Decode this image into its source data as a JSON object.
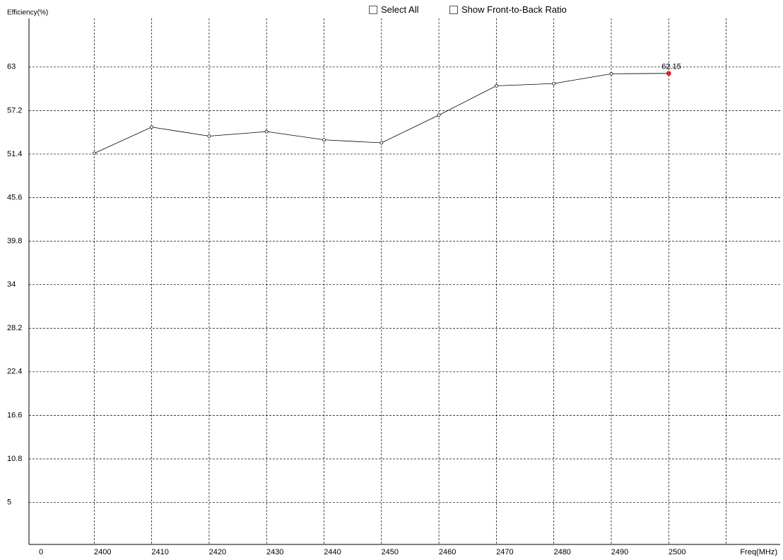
{
  "controls": [
    "Select All",
    "Show Front-to-Back Ratio"
  ],
  "chart_data": {
    "type": "line",
    "y_label": "Efficiency(%)",
    "x_label": "Freq(MHz)",
    "categories": [
      "0",
      "2400",
      "2410",
      "2420",
      "2430",
      "2440",
      "2450",
      "2460",
      "2470",
      "2480",
      "2490",
      "2500",
      null
    ],
    "series": [
      {
        "name": "Efficiency",
        "color": "#000000",
        "values": [
          null,
          51.5,
          55.0,
          53.8,
          54.4,
          53.3,
          52.9,
          56.6,
          60.5,
          60.8,
          62.1,
          62.15,
          null
        ]
      }
    ],
    "highlight": {
      "index": 11,
      "color": "#e02020"
    },
    "ylim": [
      -0.6,
      70.8
    ],
    "yticks": [
      5,
      10.8,
      16.6,
      22.4,
      28.2,
      34,
      39.8,
      45.6,
      51.4,
      57.2,
      63
    ],
    "grid": true
  }
}
